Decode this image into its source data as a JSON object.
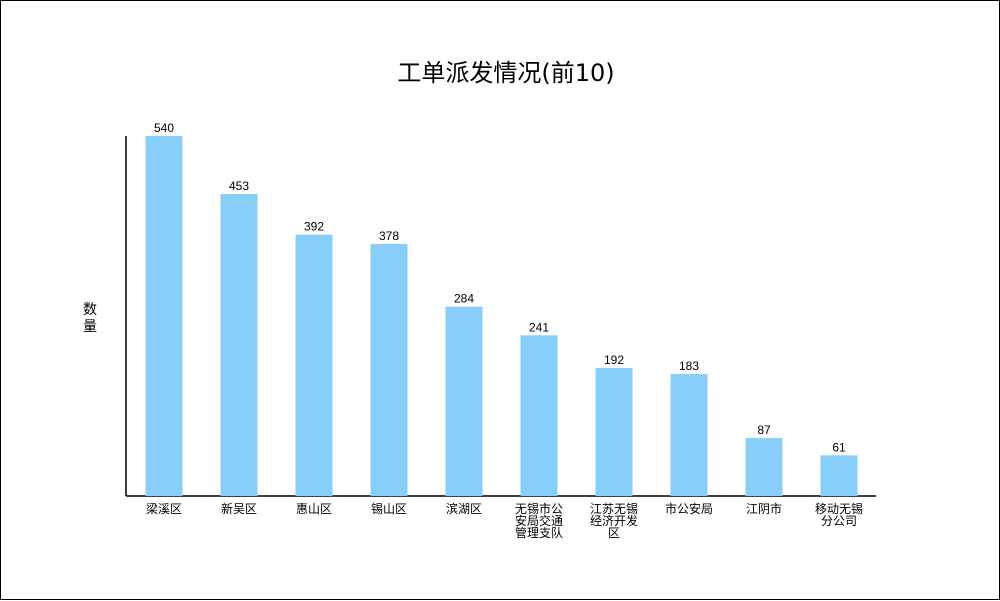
{
  "chart_data": {
    "type": "bar",
    "title": "工单派发情况(前10)",
    "xlabel": "",
    "ylabel": "数量",
    "categories": [
      "梁溪区",
      "新吴区",
      "惠山区",
      "锡山区",
      "滨湖区",
      "无锡市公安局交通管理支队",
      "江苏无锡经济开发区",
      "市公安局",
      "江阴市",
      "移动无锡分公司"
    ],
    "category_lines": [
      [
        "梁溪区"
      ],
      [
        "新吴区"
      ],
      [
        "惠山区"
      ],
      [
        "锡山区"
      ],
      [
        "滨湖区"
      ],
      [
        "无锡市公",
        "安局交通",
        "管理支队"
      ],
      [
        "江苏无锡",
        "经济开发",
        "区"
      ],
      [
        "市公安局"
      ],
      [
        "江阴市"
      ],
      [
        "移动无锡",
        "分公司"
      ]
    ],
    "values": [
      540,
      453,
      392,
      378,
      284,
      241,
      192,
      183,
      87,
      61
    ],
    "ylim": [
      0,
      540
    ],
    "grid": false,
    "legend": "none",
    "bar_color": "#87CEFA"
  }
}
